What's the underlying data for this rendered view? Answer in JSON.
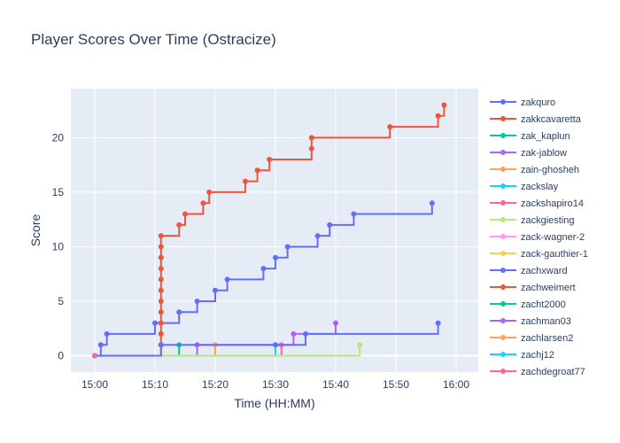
{
  "chart_data": {
    "type": "line",
    "line_shape": "step",
    "title": "Player Scores Over Time (Ostracize)",
    "xlabel": "Time (HH:MM)",
    "ylabel": "Score",
    "xlim": [
      "15:00",
      "16:00"
    ],
    "ylim": [
      -1.5,
      24.5
    ],
    "x_ticks": [
      "15:00",
      "15:10",
      "15:20",
      "15:30",
      "15:40",
      "15:50",
      "16:00"
    ],
    "y_ticks": [
      0,
      5,
      10,
      15,
      20
    ],
    "grid": true,
    "legend_position": "right",
    "series": [
      {
        "name": "zakquro",
        "color": "#636efa",
        "points": [
          [
            "15:00",
            0
          ],
          [
            "15:01",
            1
          ],
          [
            "15:02",
            2
          ],
          [
            "15:10",
            3
          ],
          [
            "15:14",
            4
          ],
          [
            "15:17",
            5
          ],
          [
            "15:20",
            6
          ],
          [
            "15:22",
            7
          ],
          [
            "15:28",
            8
          ],
          [
            "15:30",
            9
          ],
          [
            "15:32",
            10
          ],
          [
            "15:37",
            11
          ],
          [
            "15:39",
            12
          ],
          [
            "15:43",
            13
          ],
          [
            "15:56",
            14
          ]
        ]
      },
      {
        "name": "zakkcavaretta",
        "color": "#ef553b",
        "points": [
          [
            "15:00",
            0
          ],
          [
            "15:11",
            1
          ],
          [
            "15:11",
            2
          ],
          [
            "15:11",
            3
          ],
          [
            "15:11",
            4
          ],
          [
            "15:11",
            5
          ],
          [
            "15:11",
            6
          ],
          [
            "15:11",
            7
          ],
          [
            "15:11",
            8
          ],
          [
            "15:11",
            9
          ],
          [
            "15:11",
            10
          ],
          [
            "15:11",
            11
          ],
          [
            "15:14",
            12
          ],
          [
            "15:15",
            13
          ],
          [
            "15:18",
            14
          ],
          [
            "15:19",
            15
          ],
          [
            "15:25",
            16
          ],
          [
            "15:27",
            17
          ],
          [
            "15:29",
            18
          ],
          [
            "15:36",
            19
          ],
          [
            "15:36",
            20
          ],
          [
            "15:49",
            21
          ],
          [
            "15:57",
            22
          ],
          [
            "15:58",
            23
          ]
        ]
      },
      {
        "name": "zak_kaplun",
        "color": "#00cc96",
        "points": [
          [
            "15:00",
            0
          ],
          [
            "15:14",
            1
          ]
        ]
      },
      {
        "name": "zak-jablow",
        "color": "#ab63fa",
        "points": [
          [
            "15:00",
            0
          ],
          [
            "15:17",
            1
          ],
          [
            "15:33",
            2
          ],
          [
            "15:40",
            3
          ]
        ]
      },
      {
        "name": "zain-ghosheh",
        "color": "#ffa15a",
        "points": [
          [
            "15:00",
            0
          ],
          [
            "15:20",
            1
          ]
        ]
      },
      {
        "name": "zackslay",
        "color": "#19d3f3",
        "points": [
          [
            "15:00",
            0
          ],
          [
            "15:30",
            1
          ]
        ]
      },
      {
        "name": "zackshapiro14",
        "color": "#ff6692",
        "points": [
          [
            "15:00",
            0
          ],
          [
            "15:31",
            1
          ]
        ]
      },
      {
        "name": "zackgiesting",
        "color": "#b6e880",
        "points": [
          [
            "15:00",
            0
          ],
          [
            "15:44",
            1
          ]
        ]
      },
      {
        "name": "zack-wagner-2",
        "color": "#ff97ff",
        "points": [
          [
            "15:00",
            0
          ]
        ]
      },
      {
        "name": "zack-gauthier-1",
        "color": "#fecb52",
        "points": [
          [
            "15:00",
            0
          ]
        ]
      },
      {
        "name": "zachxward",
        "color": "#636efa",
        "points": [
          [
            "15:00",
            0
          ],
          [
            "15:11",
            1
          ],
          [
            "15:30",
            1
          ],
          [
            "15:35",
            2
          ],
          [
            "15:57",
            3
          ]
        ]
      },
      {
        "name": "zachweimert",
        "color": "#ef553b",
        "points": [
          [
            "15:00",
            0
          ]
        ]
      },
      {
        "name": "zacht2000",
        "color": "#00cc96",
        "points": [
          [
            "15:00",
            0
          ]
        ]
      },
      {
        "name": "zachman03",
        "color": "#ab63fa",
        "points": [
          [
            "15:00",
            0
          ]
        ]
      },
      {
        "name": "zachlarsen2",
        "color": "#ffa15a",
        "points": [
          [
            "15:00",
            0
          ]
        ]
      },
      {
        "name": "zachj12",
        "color": "#19d3f3",
        "points": [
          [
            "15:00",
            0
          ]
        ]
      },
      {
        "name": "zachdegroat77",
        "color": "#ff6692",
        "points": [
          [
            "15:00",
            0
          ]
        ]
      }
    ]
  }
}
